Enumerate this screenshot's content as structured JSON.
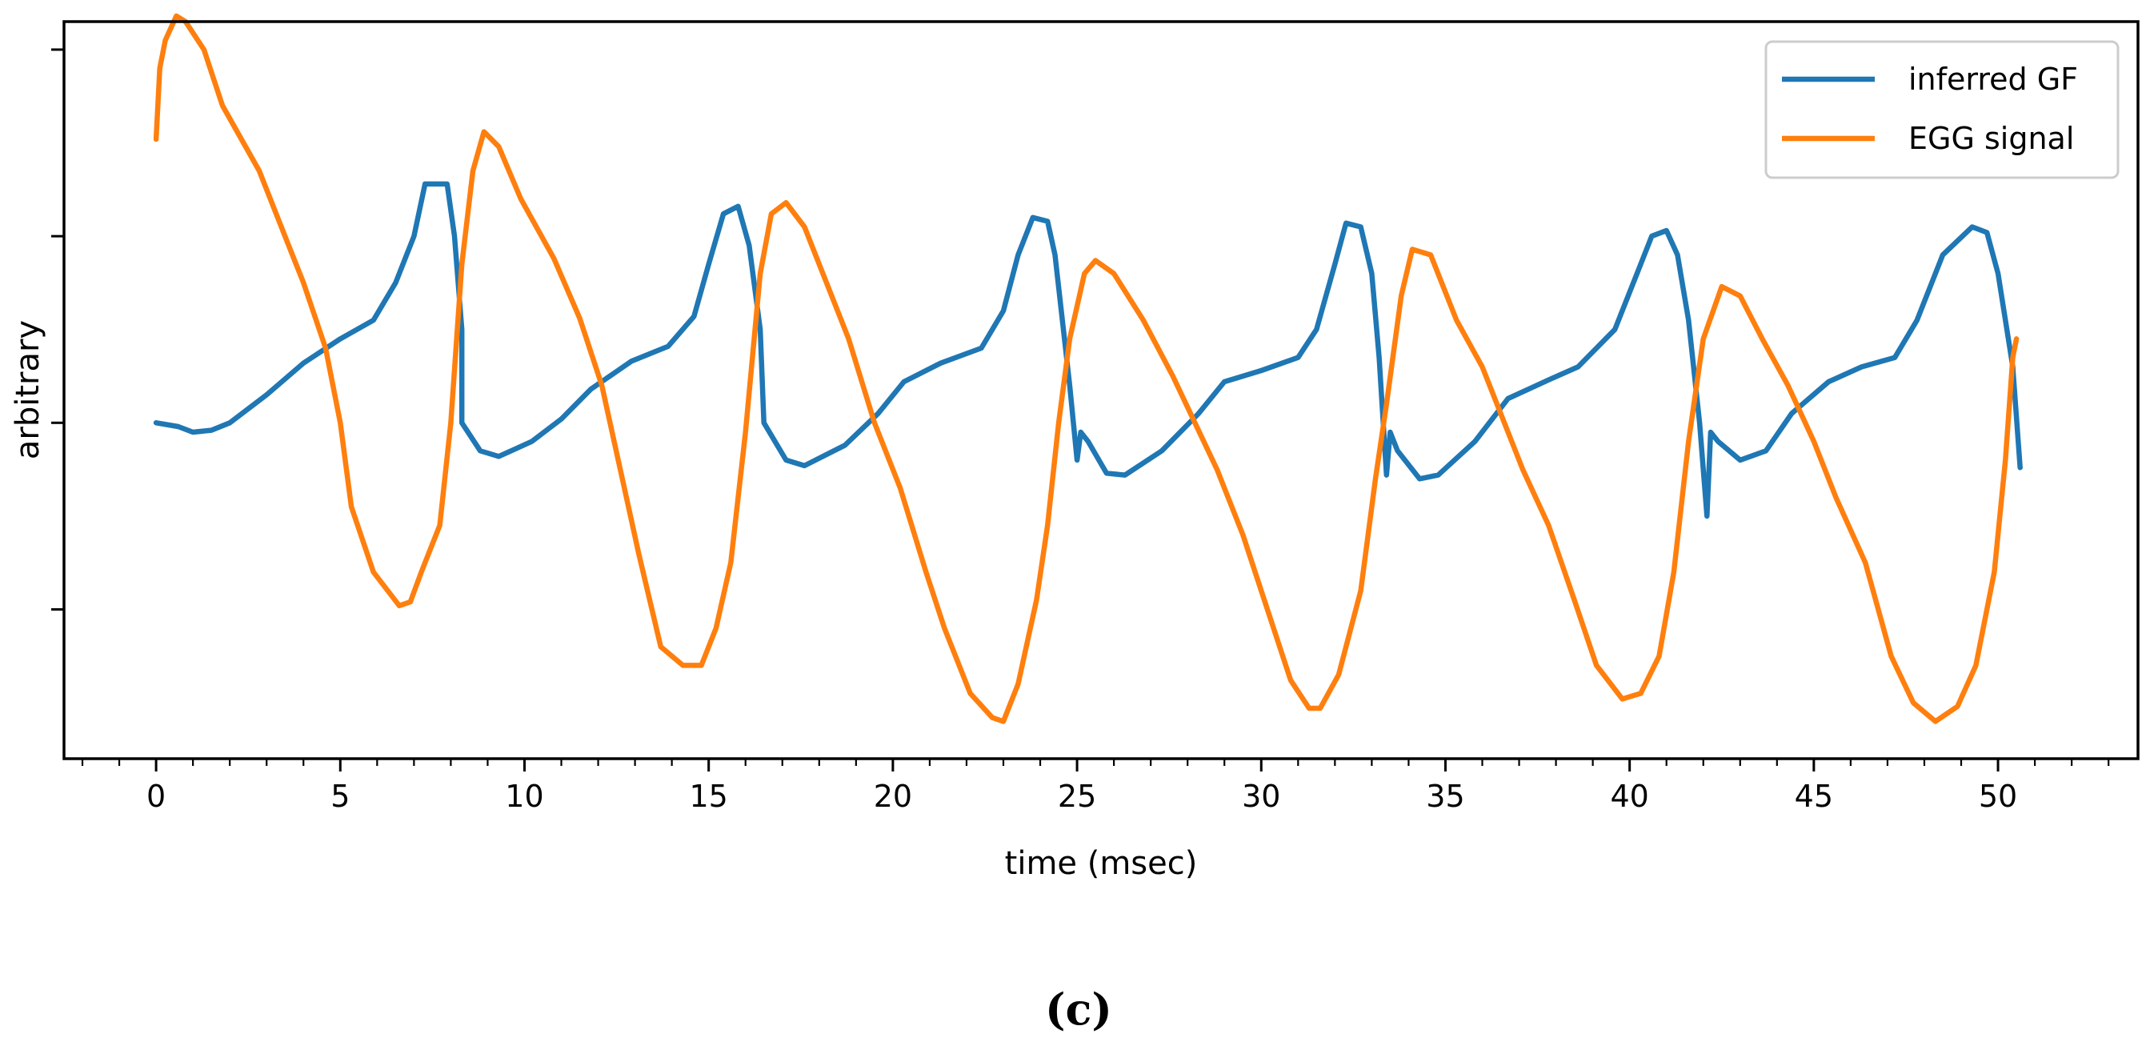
{
  "chart_data": {
    "type": "line",
    "title": "",
    "xlabel": "time (msec)",
    "ylabel": "arbitrary",
    "xlim": [
      -2.5,
      53.8
    ],
    "ylim": [
      -1.8,
      2.15
    ],
    "x_ticks": [
      0,
      5,
      10,
      15,
      20,
      25,
      30,
      35,
      40,
      45,
      50
    ],
    "x_tick_labels": [
      "0",
      "5",
      "10",
      "15",
      "20",
      "25",
      "30",
      "35",
      "40",
      "45",
      "50"
    ],
    "x_minor_step": 1,
    "y_ticks": [
      -1,
      0,
      1,
      2
    ],
    "y_tick_labels": [
      "",
      "",
      "",
      ""
    ],
    "grid": false,
    "legend_position": "top-right",
    "caption": "(c)",
    "series": [
      {
        "name": "inferred GF",
        "color": "#1f77b4",
        "points": [
          [
            0,
            0
          ],
          [
            0.6,
            -0.02
          ],
          [
            1,
            -0.05
          ],
          [
            1.5,
            -0.04
          ],
          [
            2,
            0
          ],
          [
            3,
            0.15
          ],
          [
            4,
            0.32
          ],
          [
            5,
            0.45
          ],
          [
            5.9,
            0.55
          ],
          [
            6.5,
            0.75
          ],
          [
            7.0,
            1.0
          ],
          [
            7.3,
            1.28
          ],
          [
            7.9,
            1.28
          ],
          [
            8.1,
            1.0
          ],
          [
            8.3,
            0.5
          ],
          [
            8.3,
            0
          ],
          [
            8.8,
            -0.15
          ],
          [
            9.3,
            -0.18
          ],
          [
            10.2,
            -0.1
          ],
          [
            11,
            0.02
          ],
          [
            11.8,
            0.18
          ],
          [
            12.9,
            0.33
          ],
          [
            13.9,
            0.41
          ],
          [
            14.6,
            0.57
          ],
          [
            15.0,
            0.85
          ],
          [
            15.4,
            1.12
          ],
          [
            15.8,
            1.16
          ],
          [
            16.1,
            0.95
          ],
          [
            16.4,
            0.5
          ],
          [
            16.5,
            0
          ],
          [
            17.1,
            -0.2
          ],
          [
            17.6,
            -0.23
          ],
          [
            18.7,
            -0.12
          ],
          [
            19.6,
            0.05
          ],
          [
            20.3,
            0.22
          ],
          [
            21.3,
            0.32
          ],
          [
            22.4,
            0.4
          ],
          [
            23.0,
            0.6
          ],
          [
            23.4,
            0.9
          ],
          [
            23.8,
            1.1
          ],
          [
            24.2,
            1.08
          ],
          [
            24.4,
            0.9
          ],
          [
            24.6,
            0.55
          ],
          [
            24.8,
            0.2
          ],
          [
            25.0,
            -0.2
          ],
          [
            25.1,
            -0.05
          ],
          [
            25.3,
            -0.1
          ],
          [
            25.8,
            -0.27
          ],
          [
            26.3,
            -0.28
          ],
          [
            27.3,
            -0.15
          ],
          [
            28.3,
            0.05
          ],
          [
            29.0,
            0.22
          ],
          [
            30.0,
            0.28
          ],
          [
            31.0,
            0.35
          ],
          [
            31.5,
            0.5
          ],
          [
            32.0,
            0.85
          ],
          [
            32.3,
            1.07
          ],
          [
            32.7,
            1.05
          ],
          [
            33.0,
            0.8
          ],
          [
            33.2,
            0.35
          ],
          [
            33.4,
            -0.28
          ],
          [
            33.5,
            -0.05
          ],
          [
            33.7,
            -0.15
          ],
          [
            34.3,
            -0.3
          ],
          [
            34.8,
            -0.28
          ],
          [
            35.8,
            -0.1
          ],
          [
            36.7,
            0.13
          ],
          [
            37.8,
            0.23
          ],
          [
            38.6,
            0.3
          ],
          [
            39.6,
            0.5
          ],
          [
            40.2,
            0.8
          ],
          [
            40.6,
            1.0
          ],
          [
            41.0,
            1.03
          ],
          [
            41.3,
            0.9
          ],
          [
            41.6,
            0.55
          ],
          [
            41.9,
            0
          ],
          [
            42.1,
            -0.5
          ],
          [
            42.2,
            -0.05
          ],
          [
            42.4,
            -0.1
          ],
          [
            43.0,
            -0.2
          ],
          [
            43.7,
            -0.15
          ],
          [
            44.4,
            0.05
          ],
          [
            45.4,
            0.22
          ],
          [
            46.3,
            0.3
          ],
          [
            47.2,
            0.35
          ],
          [
            47.8,
            0.55
          ],
          [
            48.5,
            0.9
          ],
          [
            49.3,
            1.05
          ],
          [
            49.7,
            1.02
          ],
          [
            50.0,
            0.8
          ],
          [
            50.4,
            0.3
          ],
          [
            50.6,
            -0.24
          ]
        ]
      },
      {
        "name": "EGG signal",
        "color": "#ff7f0e",
        "points": [
          [
            0,
            1.52
          ],
          [
            0.1,
            1.9
          ],
          [
            0.25,
            2.05
          ],
          [
            0.55,
            2.18
          ],
          [
            0.8,
            2.15
          ],
          [
            1.3,
            2.0
          ],
          [
            1.8,
            1.7
          ],
          [
            2.8,
            1.35
          ],
          [
            3.6,
            0.95
          ],
          [
            4.0,
            0.75
          ],
          [
            4.6,
            0.4
          ],
          [
            5.0,
            0
          ],
          [
            5.3,
            -0.45
          ],
          [
            5.9,
            -0.8
          ],
          [
            6.6,
            -0.98
          ],
          [
            6.9,
            -0.96
          ],
          [
            7.2,
            -0.8
          ],
          [
            7.7,
            -0.55
          ],
          [
            8.0,
            0
          ],
          [
            8.3,
            0.85
          ],
          [
            8.6,
            1.35
          ],
          [
            8.9,
            1.56
          ],
          [
            9.3,
            1.48
          ],
          [
            9.9,
            1.2
          ],
          [
            10.8,
            0.88
          ],
          [
            11.5,
            0.56
          ],
          [
            12.1,
            0.2
          ],
          [
            12.6,
            -0.25
          ],
          [
            13.1,
            -0.7
          ],
          [
            13.7,
            -1.2
          ],
          [
            14.3,
            -1.3
          ],
          [
            14.8,
            -1.3
          ],
          [
            15.2,
            -1.1
          ],
          [
            15.6,
            -0.75
          ],
          [
            16.0,
            -0.05
          ],
          [
            16.4,
            0.8
          ],
          [
            16.7,
            1.12
          ],
          [
            17.1,
            1.18
          ],
          [
            17.6,
            1.05
          ],
          [
            18.2,
            0.75
          ],
          [
            18.8,
            0.45
          ],
          [
            19.5,
            0
          ],
          [
            20.2,
            -0.35
          ],
          [
            20.9,
            -0.8
          ],
          [
            21.4,
            -1.1
          ],
          [
            22.1,
            -1.45
          ],
          [
            22.7,
            -1.58
          ],
          [
            23.0,
            -1.6
          ],
          [
            23.4,
            -1.4
          ],
          [
            23.9,
            -0.95
          ],
          [
            24.2,
            -0.55
          ],
          [
            24.5,
            0
          ],
          [
            24.8,
            0.45
          ],
          [
            25.2,
            0.8
          ],
          [
            25.5,
            0.87
          ],
          [
            26.0,
            0.8
          ],
          [
            26.8,
            0.55
          ],
          [
            27.6,
            0.25
          ],
          [
            28.2,
            0
          ],
          [
            28.8,
            -0.25
          ],
          [
            29.5,
            -0.6
          ],
          [
            30.0,
            -0.9
          ],
          [
            30.8,
            -1.38
          ],
          [
            31.3,
            -1.53
          ],
          [
            31.6,
            -1.53
          ],
          [
            32.1,
            -1.35
          ],
          [
            32.7,
            -0.9
          ],
          [
            33.1,
            -0.3
          ],
          [
            33.4,
            0.1
          ],
          [
            33.8,
            0.68
          ],
          [
            34.1,
            0.93
          ],
          [
            34.6,
            0.9
          ],
          [
            35.3,
            0.55
          ],
          [
            36.0,
            0.3
          ],
          [
            36.6,
            0
          ],
          [
            37.1,
            -0.25
          ],
          [
            37.8,
            -0.55
          ],
          [
            38.5,
            -0.95
          ],
          [
            39.1,
            -1.3
          ],
          [
            39.8,
            -1.48
          ],
          [
            40.3,
            -1.45
          ],
          [
            40.8,
            -1.25
          ],
          [
            41.2,
            -0.8
          ],
          [
            41.6,
            -0.1
          ],
          [
            42.0,
            0.45
          ],
          [
            42.5,
            0.73
          ],
          [
            43.0,
            0.68
          ],
          [
            43.6,
            0.45
          ],
          [
            44.3,
            0.2
          ],
          [
            45.0,
            -0.1
          ],
          [
            45.6,
            -0.4
          ],
          [
            46.4,
            -0.75
          ],
          [
            47.1,
            -1.25
          ],
          [
            47.7,
            -1.5
          ],
          [
            48.3,
            -1.6
          ],
          [
            48.9,
            -1.52
          ],
          [
            49.4,
            -1.3
          ],
          [
            49.9,
            -0.8
          ],
          [
            50.2,
            -0.2
          ],
          [
            50.4,
            0.35
          ],
          [
            50.5,
            0.45
          ]
        ]
      }
    ]
  }
}
